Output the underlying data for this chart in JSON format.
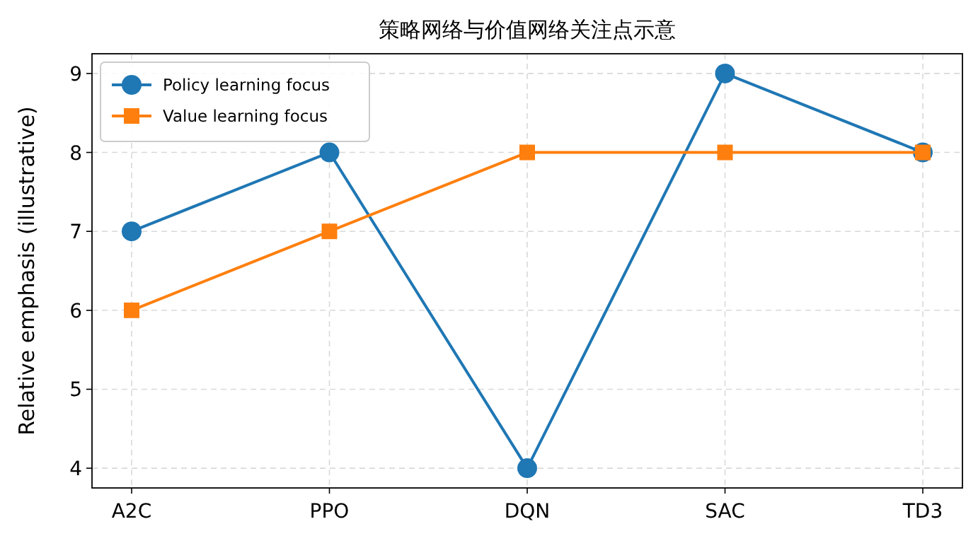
{
  "chart_data": {
    "type": "line",
    "title": "策略网络与价值网络关注点示意",
    "ylabel": "Relative emphasis (illustrative)",
    "categories": [
      "A2C",
      "PPO",
      "DQN",
      "SAC",
      "TD3"
    ],
    "series": [
      {
        "name": "Policy learning focus",
        "color": "#1f77b4",
        "marker": "circle",
        "values": [
          7,
          8,
          4,
          9,
          8
        ]
      },
      {
        "name": "Value learning focus",
        "color": "#ff7f0e",
        "marker": "square",
        "values": [
          6,
          7,
          8,
          8,
          8
        ]
      }
    ],
    "ylim": [
      3.75,
      9.25
    ],
    "yticks": [
      4,
      5,
      6,
      7,
      8,
      9
    ],
    "grid": true,
    "legend": "top left",
    "line_style": "solid"
  }
}
